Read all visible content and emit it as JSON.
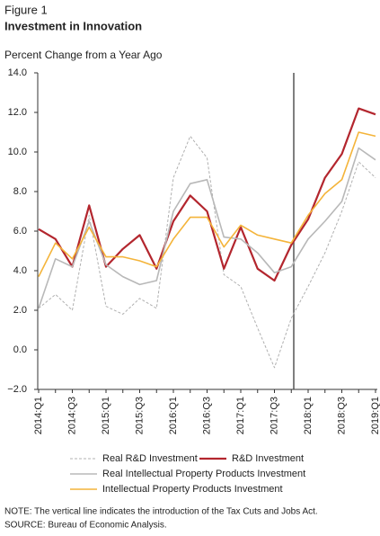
{
  "figure_label": "Figure 1",
  "chart_data": {
    "type": "line",
    "title": "Investment in Innovation",
    "subtitle": "Percent Change from a Year Ago",
    "categories": [
      "2014:Q1",
      null,
      "2014:Q3",
      null,
      "2015:Q1",
      null,
      "2015:Q3",
      null,
      "2016:Q1",
      null,
      "2016:Q3",
      null,
      "2017:Q1",
      null,
      "2017:Q3",
      null,
      "2018:Q1",
      null,
      "2018:Q3",
      null,
      "2019:Q1"
    ],
    "ylim": [
      -2,
      14
    ],
    "yticks": [
      {
        "value": -2,
        "label": "−2.0"
      },
      {
        "value": 0,
        "label": "0.0"
      },
      {
        "value": 2,
        "label": "2.0"
      },
      {
        "value": 4,
        "label": "4.0"
      },
      {
        "value": 6,
        "label": "6.0"
      },
      {
        "value": 8,
        "label": "8.0"
      },
      {
        "value": 10,
        "label": "10.0"
      },
      {
        "value": 12,
        "label": "12.0"
      },
      {
        "value": 14,
        "label": "14.0"
      }
    ],
    "grid": false,
    "series": [
      {
        "name": "Real R&D Investment",
        "color": "#b0b0b0",
        "dashed": true,
        "values": [
          2.1,
          2.8,
          2.0,
          6.8,
          2.2,
          1.8,
          2.6,
          2.1,
          8.7,
          10.8,
          9.7,
          3.8,
          3.2,
          1.1,
          -0.9,
          1.6,
          3.2,
          4.9,
          7.0,
          9.5,
          8.7
        ]
      },
      {
        "name": "R&D Investment",
        "color": "#b3262e",
        "dashed": false,
        "values": [
          6.1,
          5.6,
          4.2,
          7.3,
          4.2,
          5.1,
          5.8,
          4.1,
          6.5,
          7.8,
          7.0,
          4.1,
          6.2,
          4.1,
          3.5,
          5.3,
          6.6,
          8.7,
          9.9,
          12.2,
          11.9
        ]
      },
      {
        "name": "Real Intellectual Property Products Investment",
        "color": "#b8b8b8",
        "dashed": false,
        "values": [
          2.1,
          4.6,
          4.2,
          6.5,
          4.3,
          3.7,
          3.3,
          3.5,
          7.0,
          8.4,
          8.6,
          5.7,
          5.6,
          4.9,
          3.9,
          4.2,
          5.6,
          6.5,
          7.5,
          10.2,
          9.6
        ]
      },
      {
        "name": "Intellectual Property Products Investment",
        "color": "#f4b43a",
        "dashed": false,
        "values": [
          3.7,
          5.4,
          4.6,
          6.2,
          4.7,
          4.7,
          4.5,
          4.2,
          5.6,
          6.7,
          6.7,
          5.2,
          6.3,
          5.8,
          5.6,
          5.4,
          6.8,
          7.9,
          8.6,
          11.0,
          10.8
        ]
      }
    ]
  },
  "notes": [
    "NOTE: The vertical line indicates the introduction of the Tax Cuts and Jobs Act.",
    "SOURCE: Bureau of Economic Analysis."
  ]
}
